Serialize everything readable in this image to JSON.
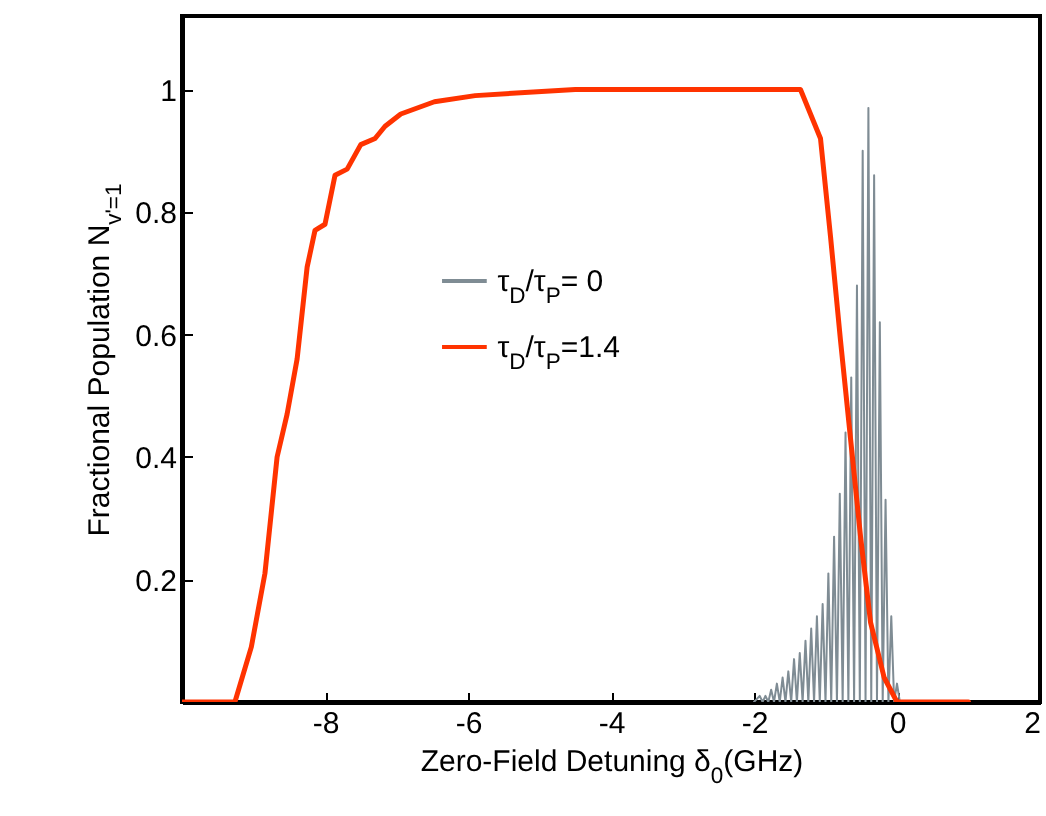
{
  "chart_data": {
    "type": "line",
    "xlabel": "Zero-Field Detuning δ$_{0}$(GHz)",
    "ylabel": "Fractional Population N$_{v'=1}$",
    "xlim": [
      -10,
      2
    ],
    "xticks": [
      -8,
      -6,
      -4,
      -2,
      0,
      2
    ],
    "ylim": [
      0,
      1.12
    ],
    "yticks": [
      0.2,
      0.4,
      0.6,
      0.8,
      1
    ],
    "grid": false,
    "legend": "left",
    "series": [
      {
        "name": "τ$_{D}$/τ$_{P}$= 0",
        "color": "#7f8c94",
        "x": [
          -2.0,
          -1.92,
          -1.88,
          -1.84,
          -1.8,
          -1.76,
          -1.72,
          -1.68,
          -1.64,
          -1.6,
          -1.56,
          -1.52,
          -1.48,
          -1.44,
          -1.4,
          -1.36,
          -1.32,
          -1.28,
          -1.24,
          -1.2,
          -1.16,
          -1.12,
          -1.08,
          -1.04,
          -1.0,
          -0.96,
          -0.92,
          -0.88,
          -0.84,
          -0.8,
          -0.76,
          -0.72,
          -0.68,
          -0.64,
          -0.6,
          -0.56,
          -0.52,
          -0.48,
          -0.44,
          -0.4,
          -0.36,
          -0.32,
          -0.28,
          -0.24,
          -0.2,
          -0.16,
          -0.12,
          -0.08,
          -0.04,
          0.0,
          0.04
        ],
        "values": [
          0,
          0.01,
          0,
          0.01,
          0,
          0.02,
          0,
          0.03,
          0,
          0.04,
          0,
          0.05,
          0,
          0.07,
          0,
          0.08,
          0,
          0.1,
          0,
          0.12,
          0,
          0.14,
          0,
          0.16,
          0,
          0.21,
          0,
          0.27,
          0,
          0.34,
          0,
          0.44,
          0,
          0.53,
          0,
          0.68,
          0,
          0.9,
          0,
          0.97,
          0,
          0.86,
          0,
          0.62,
          0,
          0.33,
          0,
          0.14,
          0,
          0.03,
          0
        ]
      },
      {
        "name": "τ$_{D}$/τ$_{P}$=1.4",
        "color": "#ff3300",
        "x": [
          -10,
          -9.26,
          -9.03,
          -8.84,
          -8.67,
          -8.53,
          -8.39,
          -8.25,
          -8.14,
          -8.0,
          -7.86,
          -7.69,
          -7.5,
          -7.3,
          -7.16,
          -6.94,
          -6.47,
          -5.9,
          -4.5,
          -3,
          -1.5,
          -1.35,
          -1.07,
          -0.93,
          -0.79,
          -0.65,
          -0.51,
          -0.37,
          -0.18,
          0.0,
          1.0
        ],
        "values": [
          0,
          0,
          0.09,
          0.21,
          0.4,
          0.47,
          0.56,
          0.71,
          0.77,
          0.78,
          0.86,
          0.87,
          0.91,
          0.92,
          0.94,
          0.96,
          0.98,
          0.99,
          1.0,
          1.0,
          1.0,
          1.0,
          0.92,
          0.76,
          0.59,
          0.43,
          0.27,
          0.13,
          0.04,
          0,
          0
        ]
      }
    ]
  }
}
